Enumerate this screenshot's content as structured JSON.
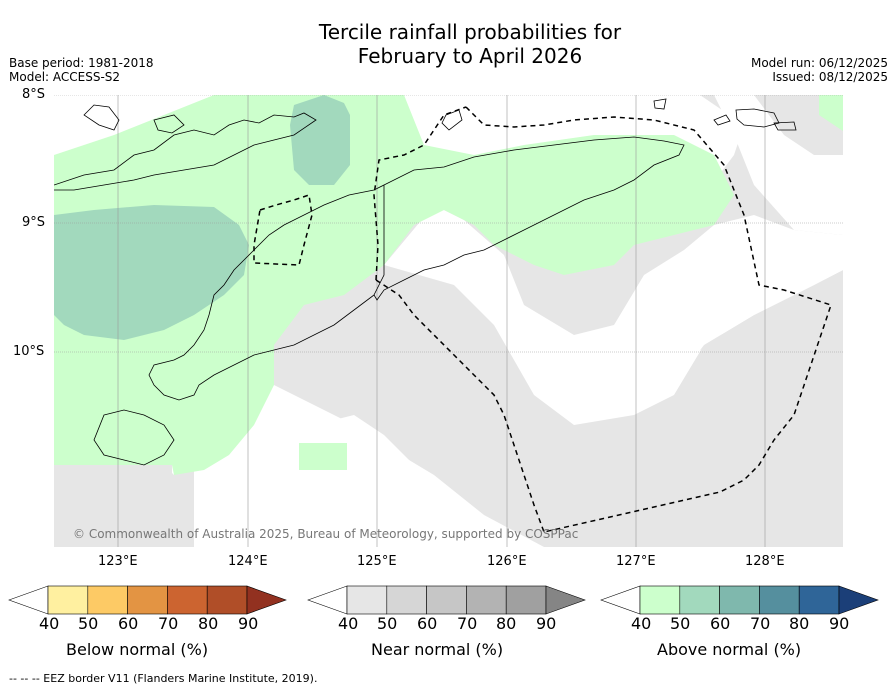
{
  "title_line1": "Tercile rainfall probabilities for",
  "title_line2": "February to April 2026",
  "base_period": "Base period: 1981-2018",
  "model": "Model: ACCESS-S2",
  "model_run": "Model run: 06/12/2025",
  "issued": "Issued: 08/12/2025",
  "copyright": "© Commonwealth of Australia 2025, Bureau of Meteorology, supported by COSPPac",
  "lat_labels": [
    "8°S",
    "9°S",
    "10°S"
  ],
  "lon_labels": [
    "123°E",
    "124°E",
    "125°E",
    "126°E",
    "127°E",
    "128°E"
  ],
  "colorbars": [
    {
      "label": "Below normal (%)",
      "ticks": [
        "40",
        "50",
        "60",
        "70",
        "80",
        "90"
      ],
      "colors": [
        "#ffffff",
        "#fff0a0",
        "#fdca65",
        "#e39443",
        "#cc6430",
        "#b04e28",
        "#923120"
      ]
    },
    {
      "label": "Near normal (%)",
      "ticks": [
        "40",
        "50",
        "60",
        "70",
        "80",
        "90"
      ],
      "colors": [
        "#ffffff",
        "#e6e6e6",
        "#d6d6d6",
        "#c6c6c6",
        "#b3b3b3",
        "#a0a0a0",
        "#858585"
      ]
    },
    {
      "label": "Above normal (%)",
      "ticks": [
        "40",
        "50",
        "60",
        "70",
        "80",
        "90"
      ],
      "colors": [
        "#ffffff",
        "#ccffcc",
        "#a2d9bd",
        "#7fb8ad",
        "#558f9e",
        "#2f6598",
        "#1b3f78"
      ]
    }
  ],
  "footnote": "-- -- -- EEZ border V11 (Flanders Marine Institute, 2019).",
  "colors": {
    "above_40": "#ccffcc",
    "above_50": "#a2d9bd",
    "near_40": "#e6e6e6"
  }
}
